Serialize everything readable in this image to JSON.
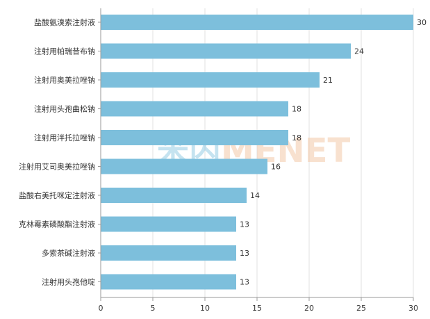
{
  "watermark": {
    "left": "米内",
    "right": "MENET",
    "left_color": "#7fc3df",
    "right_color": "#f3c9a9"
  },
  "colors": {
    "bar": "#7dbfdc",
    "grid": "#e2e2e2",
    "axis": "#999999",
    "text": "#333333"
  },
  "chart_data": {
    "type": "bar",
    "orientation": "horizontal",
    "categories": [
      "盐酸氨溴索注射液",
      "注射用帕瑞昔布钠",
      "注射用奥美拉唑钠",
      "注射用头孢曲松钠",
      "注射用泮托拉唑钠",
      "注射用艾司奥美拉唑钠",
      "盐酸右美托咪定注射液",
      "克林霉素磷酸酯注射液",
      "多索茶碱注射液",
      "注射用头孢他啶"
    ],
    "values": [
      30,
      24,
      21,
      18,
      18,
      16,
      14,
      13,
      13,
      13
    ],
    "data_labels": [
      "30",
      "24",
      "21",
      "18",
      "18",
      "16",
      "14",
      "13",
      "13",
      "13"
    ],
    "x_ticks": [
      0,
      5,
      10,
      15,
      20,
      25,
      30
    ],
    "x_tick_labels": [
      "0",
      "5",
      "10",
      "15",
      "20",
      "25",
      "30"
    ],
    "xlim": [
      0,
      30
    ],
    "grid": true,
    "title": "",
    "xlabel": "",
    "ylabel": ""
  }
}
